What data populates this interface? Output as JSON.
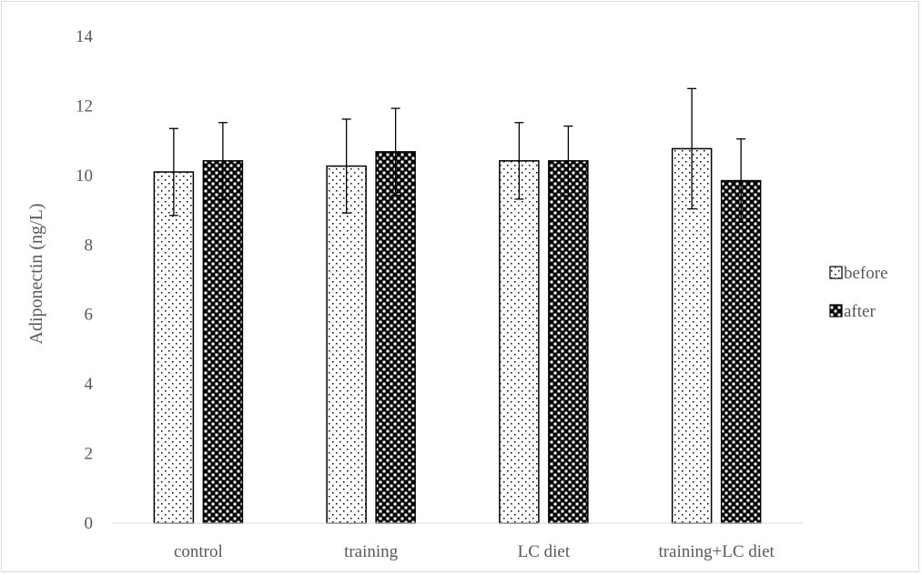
{
  "chart_data": {
    "type": "bar",
    "title": "",
    "xlabel": "",
    "ylabel": "Adiponectin (ng/L)",
    "ylim": [
      0,
      14
    ],
    "yticks": [
      "0",
      "2",
      "4",
      "6",
      "8",
      "10",
      "12",
      "14"
    ],
    "categories": [
      "control",
      "training",
      "LC diet",
      "training+LC diet"
    ],
    "series": [
      {
        "name": "before",
        "values": [
          10.1,
          10.27,
          10.42,
          10.77
        ],
        "errors": [
          1.25,
          1.35,
          1.1,
          1.73
        ]
      },
      {
        "name": "after",
        "values": [
          10.42,
          10.68,
          10.42,
          9.85
        ],
        "errors": [
          1.1,
          1.25,
          1.0,
          1.2
        ]
      }
    ],
    "legend_position": "right",
    "grid": false
  }
}
